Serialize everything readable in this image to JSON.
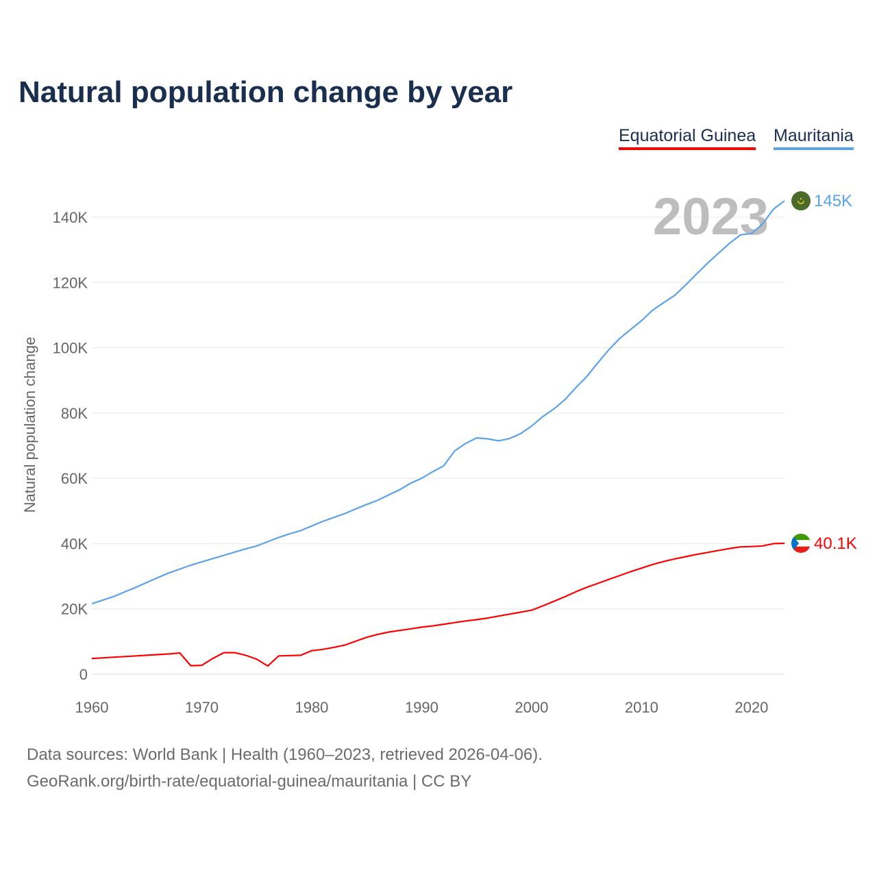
{
  "title": "Natural population change by year",
  "legend": [
    "Equatorial Guinea",
    "Mauritania"
  ],
  "year_watermark": "2023",
  "footer": {
    "line1": "Data sources: World Bank | Health (1960–2023, retrieved 2026-04-06).",
    "line2": "GeoRank.org/birth-rate/equatorial-guinea/mauritania | CC BY"
  },
  "chart_data": {
    "type": "line",
    "title": "Natural population change by year",
    "xlabel": "",
    "ylabel": "Natural population change",
    "x_start": 1960,
    "x_end": 2023,
    "xlim": [
      1960,
      2023
    ],
    "ylim": [
      0,
      140000
    ],
    "value_unit": "thousands",
    "grid": true,
    "legend_position": "top-right",
    "x_ticks": [
      "1960",
      "1970",
      "1980",
      "1990",
      "2000",
      "2010",
      "2020"
    ],
    "y_ticks": [
      {
        "value": 0,
        "label": "0"
      },
      {
        "value": 20,
        "label": "20K"
      },
      {
        "value": 40,
        "label": "40K"
      },
      {
        "value": 60,
        "label": "60K"
      },
      {
        "value": 80,
        "label": "80K"
      },
      {
        "value": 100,
        "label": "100K"
      },
      {
        "value": 120,
        "label": "120K"
      },
      {
        "value": 140,
        "label": "140K"
      }
    ],
    "series": [
      {
        "name": "Equatorial Guinea",
        "color": "#ff0000",
        "end_label": "40.1K",
        "flag": "equatorial-guinea-flag",
        "values": [
          4.8,
          5.0,
          5.2,
          5.4,
          5.6,
          5.8,
          6.0,
          6.2,
          6.5,
          2.6,
          2.7,
          4.8,
          6.6,
          6.6,
          5.8,
          4.6,
          2.5,
          5.6,
          5.7,
          5.8,
          7.2,
          7.6,
          8.2,
          8.9,
          10.1,
          11.3,
          12.2,
          12.9,
          13.4,
          13.9,
          14.4,
          14.8,
          15.3,
          15.8,
          16.3,
          16.7,
          17.2,
          17.8,
          18.4,
          19.0,
          19.6,
          20.9,
          22.3,
          23.7,
          25.2,
          26.6,
          27.8,
          29.0,
          30.2,
          31.4,
          32.5,
          33.6,
          34.5,
          35.3,
          36.0,
          36.7,
          37.3,
          37.9,
          38.5,
          39.0,
          39.1,
          39.3,
          40.0,
          40.1
        ]
      },
      {
        "name": "Mauritania",
        "color": "#5aa2ea",
        "end_label": "145K",
        "flag": "mauritania-flag",
        "values": [
          21.6,
          22.7,
          23.8,
          25.2,
          26.6,
          28.1,
          29.6,
          31.0,
          32.2,
          33.4,
          34.4,
          35.4,
          36.4,
          37.4,
          38.4,
          39.3,
          40.6,
          41.9,
          43.0,
          44.0,
          45.4,
          46.8,
          48.0,
          49.2,
          50.6,
          52.0,
          53.3,
          54.9,
          56.5,
          58.5,
          60.0,
          62.0,
          63.8,
          68.4,
          70.7,
          72.4,
          72.1,
          71.5,
          72.2,
          73.7,
          76.0,
          78.9,
          81.2,
          84.0,
          87.7,
          91.1,
          95.3,
          99.3,
          102.8,
          105.6,
          108.3,
          111.5,
          113.8,
          116.0,
          119.2,
          122.6,
          125.9,
          129.0,
          132.0,
          134.6,
          135.0,
          137.9,
          142.5,
          145.0
        ]
      }
    ]
  }
}
